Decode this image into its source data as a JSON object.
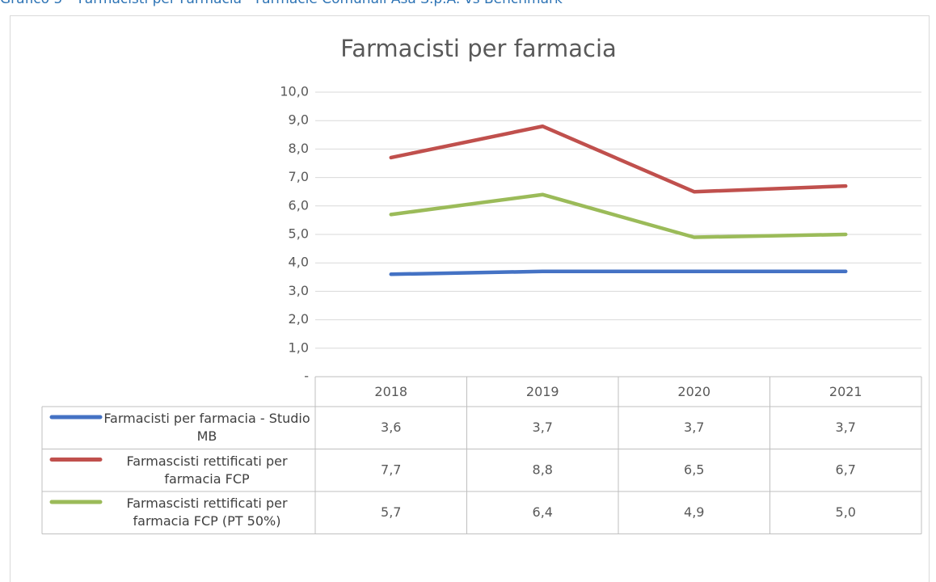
{
  "caption": "Grafico 5 – Farmacisti per Farmacia - Farmacie Comunali Asa S.p.A. vs Benchmark",
  "chart_data": {
    "type": "line",
    "title": "Farmacisti per farmacia",
    "categories": [
      "2018",
      "2019",
      "2020",
      "2021"
    ],
    "series": [
      {
        "name": "Farmacisti per farmacia - Studio MB",
        "color": "#4472c4",
        "values": [
          3.6,
          3.7,
          3.7,
          3.7
        ],
        "value_labels": [
          "3,6",
          "3,7",
          "3,7",
          "3,7"
        ]
      },
      {
        "name": "Farmascisti rettificati per farmacia FCP",
        "color": "#c0504d",
        "values": [
          7.7,
          8.8,
          6.5,
          6.7
        ],
        "value_labels": [
          "7,7",
          "8,8",
          "6,5",
          "6,7"
        ]
      },
      {
        "name": "Farmascisti rettificati per farmacia FCP (PT 50%)",
        "color": "#9bbb59",
        "values": [
          5.7,
          6.4,
          4.9,
          5.0
        ],
        "value_labels": [
          "5,7",
          "6,4",
          "4,9",
          "5,0"
        ]
      }
    ],
    "ylim": [
      0,
      10
    ],
    "yticks": [
      {
        "value": 0,
        "label": "-"
      },
      {
        "value": 1,
        "label": "1,0"
      },
      {
        "value": 2,
        "label": "2,0"
      },
      {
        "value": 3,
        "label": "3,0"
      },
      {
        "value": 4,
        "label": "4,0"
      },
      {
        "value": 5,
        "label": "5,0"
      },
      {
        "value": 6,
        "label": "6,0"
      },
      {
        "value": 7,
        "label": "7,0"
      },
      {
        "value": 8,
        "label": "8,0"
      },
      {
        "value": 9,
        "label": "9,0"
      },
      {
        "value": 10,
        "label": "10,0"
      }
    ],
    "grid": true
  }
}
